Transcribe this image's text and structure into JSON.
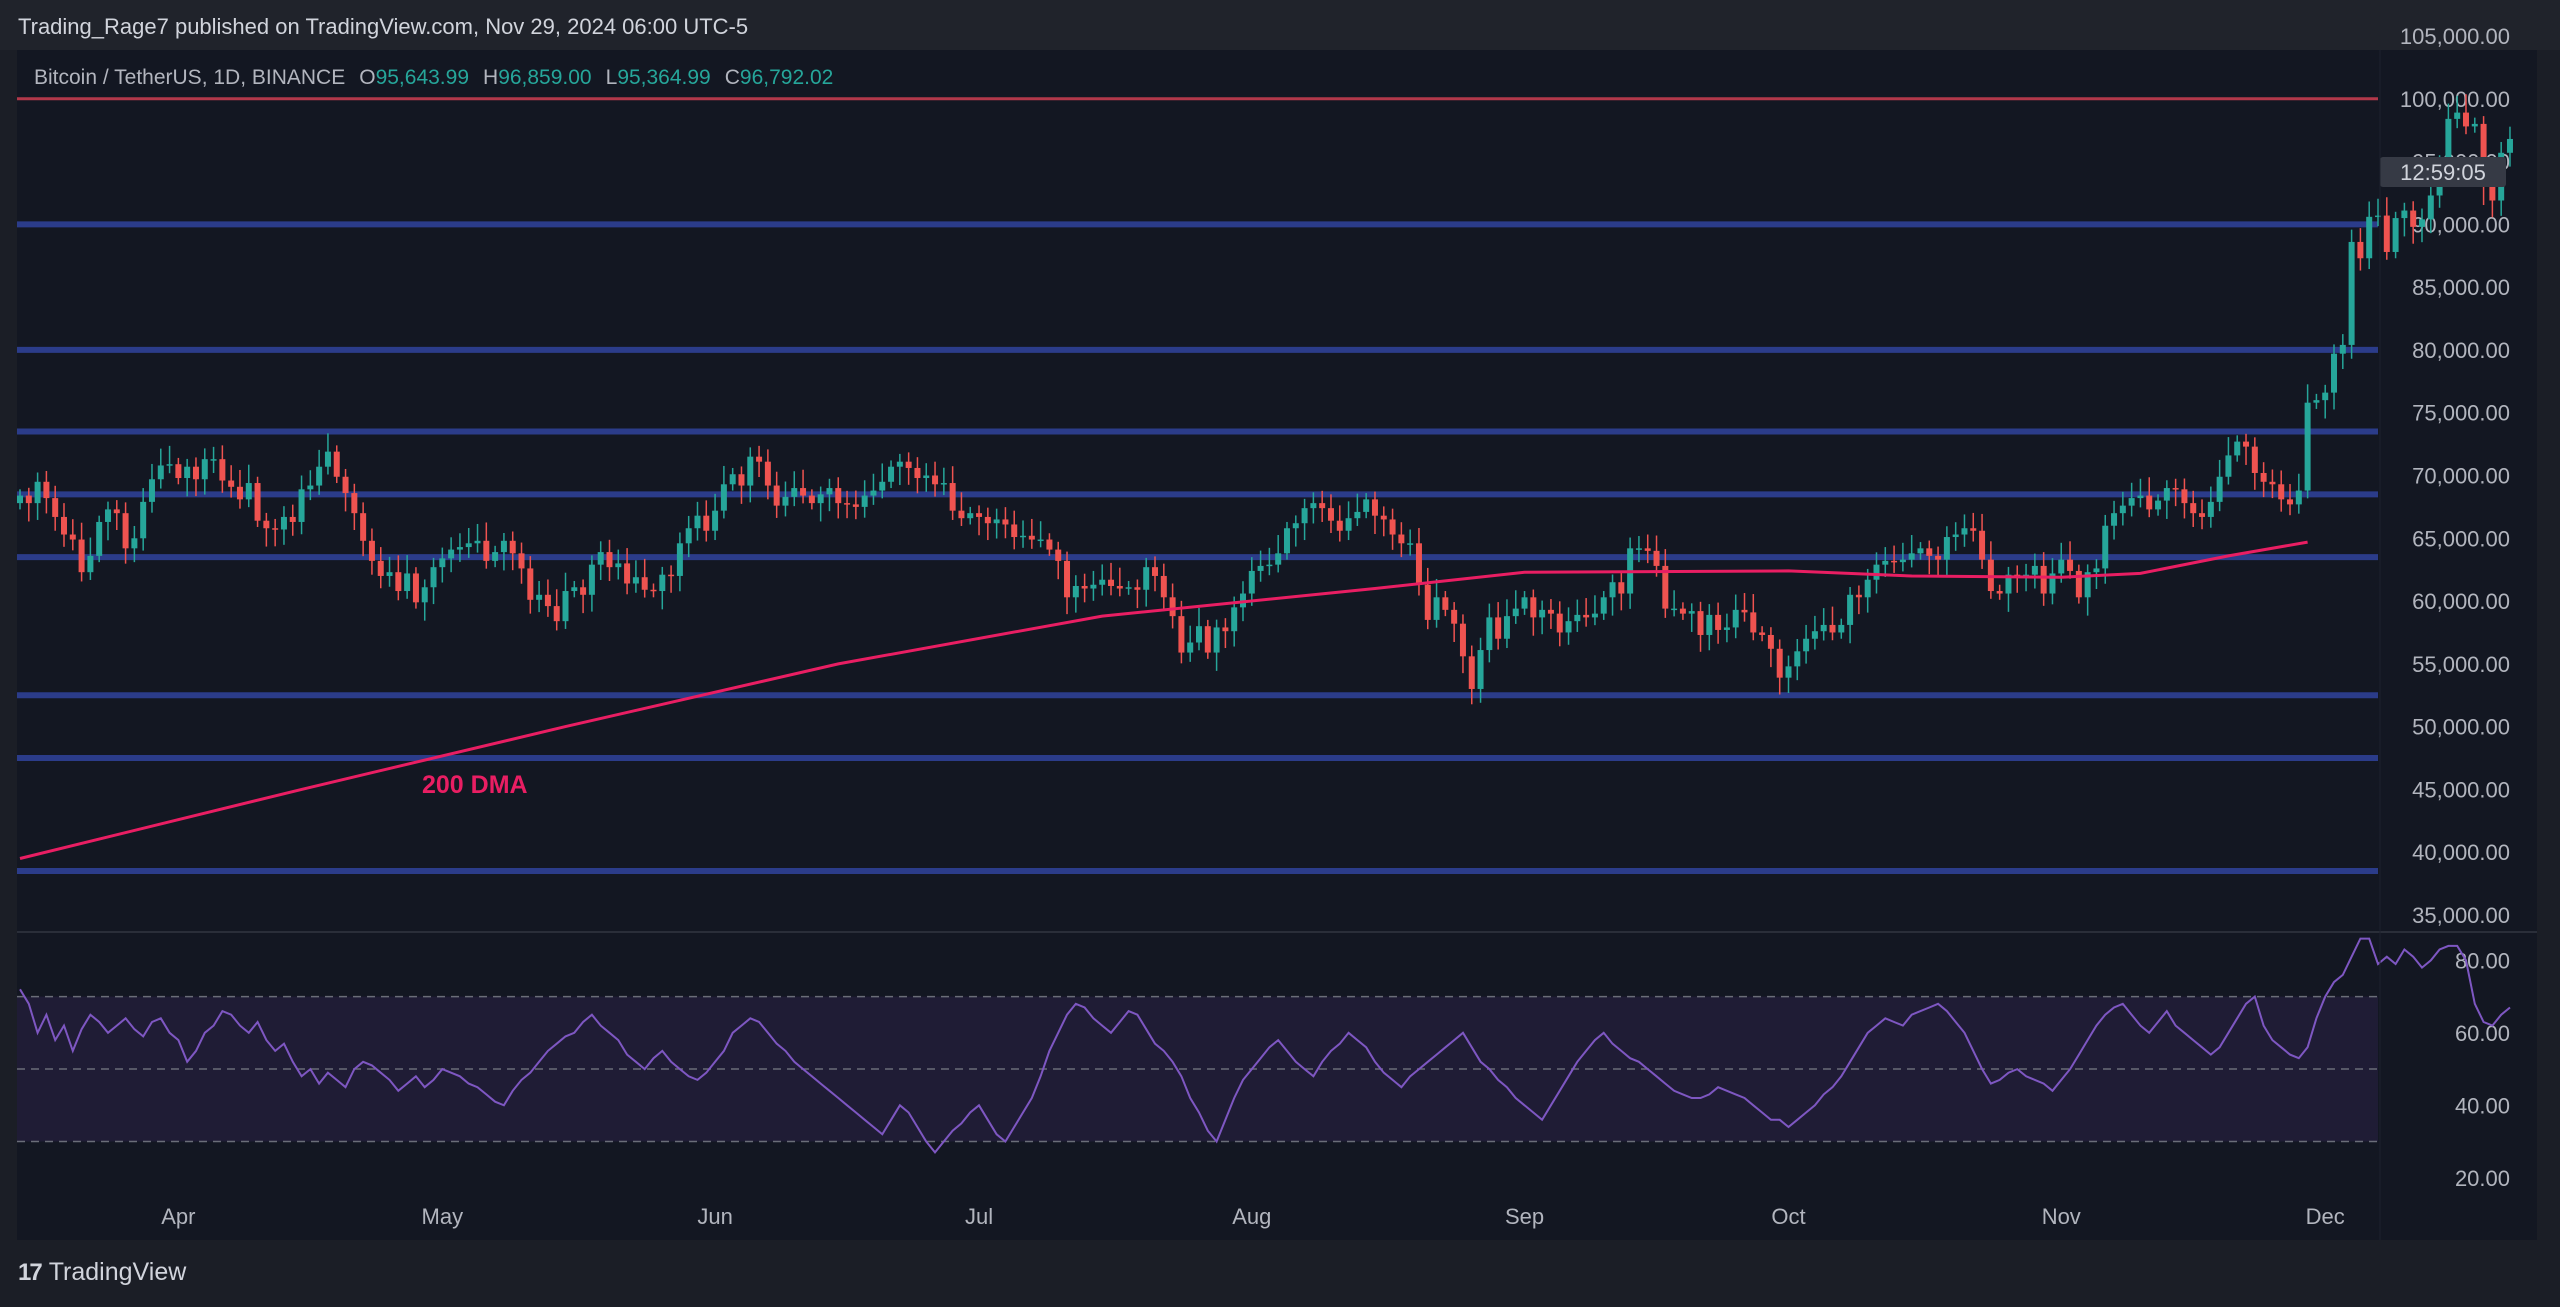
{
  "header": {
    "publisher_text": "Trading_Rage7 published on TradingView.com, Nov 29, 2024 06:00 UTC-5"
  },
  "symbol": {
    "name": "Bitcoin / TetherUS, 1D, BINANCE",
    "o_label": "O",
    "o_value": "95,643.99",
    "h_label": "H",
    "h_value": "96,859.00",
    "l_label": "L",
    "l_value": "95,364.99",
    "c_label": "C",
    "c_value": "96,792.02"
  },
  "countdown": "12:59:05",
  "footer": {
    "brand": "TradingView",
    "brand_mark": "17"
  },
  "colors": {
    "up": "#26a69a",
    "down": "#ef5350",
    "dma": "#e91e63",
    "level": "#2b3c8a",
    "resistance": "#b2384a",
    "rsi": "#7e57c2",
    "background": "#131722",
    "text": "#b2b5be"
  },
  "chart_data": [
    {
      "type": "candlestick",
      "title": "Bitcoin / TetherUS, 1D, BINANCE",
      "x_ticks": [
        "Apr",
        "May",
        "Jun",
        "Jul",
        "Aug",
        "Sep",
        "Oct",
        "Nov",
        "Dec"
      ],
      "y_ticks": [
        "35,000.00",
        "40,000.00",
        "45,000.00",
        "50,000.00",
        "55,000.00",
        "60,000.00",
        "65,000.00",
        "70,000.00",
        "75,000.00",
        "80,000.00",
        "85,000.00",
        "90,000.00",
        "95,000.00",
        "100,000.00",
        "105,000.00"
      ],
      "ylim": [
        35000,
        105000
      ],
      "x_start": "2024-03-14",
      "x_end": "2024-12-07",
      "closes": [
        68400,
        67800,
        69500,
        68200,
        66700,
        65300,
        64900,
        62300,
        63600,
        66300,
        67300,
        67000,
        64200,
        65000,
        67900,
        69700,
        70800,
        70900,
        69800,
        70700,
        69700,
        71300,
        71300,
        69600,
        69100,
        68100,
        69400,
        66400,
        65800,
        65700,
        66700,
        66300,
        68900,
        69200,
        70700,
        71900,
        69900,
        68600,
        67000,
        64800,
        63200,
        62000,
        62300,
        60800,
        62200,
        59900,
        61100,
        62700,
        63400,
        64100,
        64300,
        64600,
        64800,
        63200,
        63900,
        64800,
        63800,
        62600,
        60100,
        60500,
        59600,
        58400,
        60800,
        61100,
        60500,
        62900,
        63900,
        62700,
        63000,
        61400,
        61900,
        60900,
        60800,
        62100,
        62000,
        64600,
        65800,
        66800,
        65600,
        67200,
        69300,
        70100,
        69200,
        71500,
        71100,
        69200,
        67600,
        68300,
        69000,
        68400,
        67800,
        68500,
        69000,
        67800,
        67700,
        67500,
        68400,
        68800,
        69500,
        70700,
        71100,
        70600,
        69800,
        70000,
        69300,
        69400,
        67200,
        66600,
        67000,
        66700,
        66200,
        66500,
        66100,
        65100,
        65200,
        64900,
        64900,
        64100,
        63200,
        60300,
        61200,
        61000,
        61300,
        61700,
        61200,
        61000,
        61100,
        60900,
        62700,
        62000,
        60300,
        58800,
        55900,
        56700,
        58000,
        55900,
        57900,
        57600,
        59500,
        60600,
        62400,
        62800,
        62900,
        63800,
        65800,
        66200,
        67400,
        67800,
        67400,
        66400,
        65600,
        66600,
        67100,
        68100,
        66800,
        66500,
        65300,
        64600,
        64600,
        61300,
        58500,
        60300,
        59300,
        58200,
        55600,
        53000,
        56100,
        58700,
        57000,
        58800,
        59400,
        60300,
        58700,
        59300,
        59000,
        57500,
        58400,
        58900,
        58700,
        59000,
        60300,
        61500,
        60600,
        64200,
        64200,
        64000,
        62800,
        59400,
        59400,
        59000,
        59200,
        57300,
        58900,
        57700,
        57900,
        59300,
        59100,
        57500,
        57300,
        56200,
        53900,
        54800,
        56000,
        57000,
        57600,
        58100,
        57500,
        58100,
        60500,
        60300,
        61700,
        62900,
        63200,
        63100,
        63300,
        63800,
        64200,
        63600,
        63300,
        65100,
        65300,
        65800,
        65600,
        63300,
        60800,
        60600,
        62100,
        62000,
        62100,
        62800,
        60600,
        62200,
        63300,
        62400,
        60300,
        62300,
        62600,
        66000,
        67000,
        67600,
        68200,
        68400,
        67300,
        68000,
        69000,
        68900,
        67800,
        67000,
        66700,
        67900,
        69900,
        71600,
        72700,
        72300,
        70200,
        69500,
        69300,
        68100,
        67700,
        68800,
        75800,
        76000,
        76600,
        79700,
        80400,
        88600,
        87300,
        90600,
        90700,
        87800,
        90500,
        91100,
        89800,
        90400,
        92300,
        94400,
        98400,
        98900,
        97800,
        98000,
        93000,
        91900,
        95700,
        96800
      ],
      "candle_ohlc_note": "open of each day = previous close",
      "dma_200": {
        "label": "200 DMA",
        "points": [
          [
            "2024-03-14",
            39500
          ],
          [
            "2024-04-15",
            45000
          ],
          [
            "2024-05-15",
            50000
          ],
          [
            "2024-06-15",
            55000
          ],
          [
            "2024-07-15",
            58800
          ],
          [
            "2024-08-15",
            61000
          ],
          [
            "2024-09-01",
            62300
          ],
          [
            "2024-10-01",
            62400
          ],
          [
            "2024-10-15",
            62000
          ],
          [
            "2024-11-01",
            61900
          ],
          [
            "2024-11-10",
            62200
          ],
          [
            "2024-11-20",
            63600
          ],
          [
            "2024-11-29",
            64700
          ]
        ]
      },
      "horizontal_levels": [
        38500,
        47500,
        52500,
        63500,
        68500,
        73500,
        80000,
        90000
      ],
      "resistance_level": 100000,
      "annotation": "200 DMA"
    },
    {
      "type": "line",
      "name": "RSI",
      "y_ticks": [
        "20.00",
        "40.00",
        "60.00",
        "80.00"
      ],
      "ylim": [
        18,
        87
      ],
      "bands": [
        30,
        50,
        70
      ],
      "values": [
        72,
        68,
        60,
        65,
        58,
        62,
        55,
        61,
        65,
        63,
        60,
        62,
        64,
        61,
        59,
        63,
        64,
        60,
        58,
        52,
        55,
        60,
        62,
        66,
        65,
        62,
        60,
        63,
        58,
        55,
        57,
        52,
        48,
        50,
        46,
        49,
        47,
        45,
        50,
        52,
        51,
        49,
        47,
        44,
        46,
        48,
        45,
        47,
        50,
        49,
        48,
        46,
        45,
        43,
        41,
        40,
        44,
        47,
        49,
        52,
        55,
        57,
        59,
        60,
        63,
        65,
        62,
        60,
        58,
        54,
        52,
        50,
        53,
        55,
        52,
        50,
        48,
        47,
        49,
        52,
        55,
        60,
        62,
        64,
        63,
        60,
        57,
        55,
        52,
        50,
        48,
        46,
        44,
        42,
        40,
        38,
        36,
        34,
        32,
        36,
        40,
        38,
        34,
        30,
        27,
        30,
        33,
        35,
        38,
        40,
        36,
        32,
        30,
        34,
        38,
        42,
        48,
        55,
        60,
        65,
        68,
        67,
        64,
        62,
        60,
        63,
        66,
        65,
        61,
        57,
        55,
        52,
        48,
        42,
        38,
        33,
        30,
        36,
        42,
        47,
        50,
        53,
        56,
        58,
        55,
        52,
        50,
        48,
        52,
        55,
        57,
        60,
        58,
        56,
        52,
        49,
        47,
        45,
        48,
        50,
        52,
        54,
        56,
        58,
        60,
        56,
        52,
        50,
        47,
        45,
        42,
        40,
        38,
        36,
        40,
        44,
        48,
        52,
        55,
        58,
        60,
        57,
        55,
        53,
        52,
        50,
        48,
        46,
        44,
        43,
        42,
        42,
        43,
        45,
        44,
        43,
        42,
        40,
        38,
        36,
        36,
        34,
        36,
        38,
        40,
        43,
        45,
        48,
        52,
        56,
        60,
        62,
        64,
        63,
        62,
        65,
        66,
        67,
        68,
        66,
        63,
        60,
        55,
        50,
        46,
        47,
        49,
        50,
        48,
        47,
        46,
        44,
        47,
        50,
        54,
        58,
        62,
        65,
        67,
        68,
        65,
        62,
        60,
        63,
        66,
        62,
        60,
        58,
        56,
        54,
        56,
        60,
        64,
        68,
        70,
        62,
        58,
        56,
        54,
        53,
        56,
        64,
        70,
        74,
        76,
        81,
        86,
        86,
        79,
        81,
        79,
        83,
        81,
        78,
        80,
        83,
        84,
        84,
        80,
        68,
        63,
        62,
        65,
        67
      ]
    }
  ]
}
